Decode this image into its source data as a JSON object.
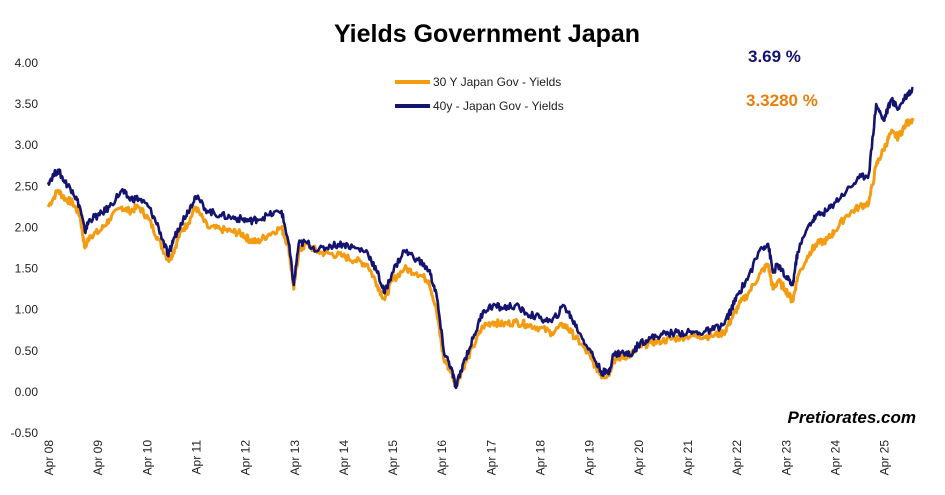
{
  "chart_data": {
    "type": "line",
    "title": "Yields Government Japan",
    "xlabel": "",
    "ylabel": "",
    "ylim": [
      -0.5,
      4.0
    ],
    "y_ticks": [
      "4.00",
      "3.50",
      "3.00",
      "2.50",
      "2.00",
      "1.50",
      "1.00",
      "0.50",
      "0.00",
      "-0.50"
    ],
    "x_ticks": [
      "Apr 08",
      "Apr 09",
      "Apr 10",
      "Apr 11",
      "Apr 12",
      "Apr 13",
      "Apr 14",
      "Apr 15",
      "Apr 16",
      "Apr 17",
      "Apr 18",
      "Apr 19",
      "Apr 20",
      "Apr 21",
      "Apr 22",
      "Apr 23",
      "Apr 24",
      "Apr 25"
    ],
    "x_range": [
      2008.25,
      2025.95
    ],
    "legend_position": "top-center",
    "series": [
      {
        "name": "30 Y Japan Gov - Yields",
        "color": "#F39C12",
        "last_value_label": "3.3280 %",
        "points": [
          [
            2008.25,
            2.25
          ],
          [
            2008.45,
            2.45
          ],
          [
            2008.6,
            2.35
          ],
          [
            2008.75,
            2.3
          ],
          [
            2008.9,
            2.15
          ],
          [
            2009.0,
            1.75
          ],
          [
            2009.1,
            1.9
          ],
          [
            2009.3,
            1.95
          ],
          [
            2009.5,
            2.1
          ],
          [
            2009.75,
            2.25
          ],
          [
            2009.9,
            2.2
          ],
          [
            2010.1,
            2.25
          ],
          [
            2010.3,
            2.1
          ],
          [
            2010.5,
            1.85
          ],
          [
            2010.7,
            1.6
          ],
          [
            2010.8,
            1.7
          ],
          [
            2010.95,
            1.95
          ],
          [
            2011.1,
            2.05
          ],
          [
            2011.25,
            2.25
          ],
          [
            2011.5,
            2.0
          ],
          [
            2011.75,
            1.98
          ],
          [
            2012.0,
            1.95
          ],
          [
            2012.2,
            1.92
          ],
          [
            2012.35,
            1.85
          ],
          [
            2012.5,
            1.82
          ],
          [
            2012.75,
            1.92
          ],
          [
            2013.0,
            2.0
          ],
          [
            2013.15,
            1.75
          ],
          [
            2013.25,
            1.25
          ],
          [
            2013.35,
            1.7
          ],
          [
            2013.5,
            1.8
          ],
          [
            2013.75,
            1.7
          ],
          [
            2014.0,
            1.68
          ],
          [
            2014.25,
            1.65
          ],
          [
            2014.5,
            1.6
          ],
          [
            2014.75,
            1.55
          ],
          [
            2014.95,
            1.3
          ],
          [
            2015.1,
            1.12
          ],
          [
            2015.25,
            1.35
          ],
          [
            2015.5,
            1.5
          ],
          [
            2015.75,
            1.45
          ],
          [
            2016.0,
            1.35
          ],
          [
            2016.15,
            1.0
          ],
          [
            2016.3,
            0.4
          ],
          [
            2016.45,
            0.25
          ],
          [
            2016.55,
            0.08
          ],
          [
            2016.7,
            0.3
          ],
          [
            2016.9,
            0.55
          ],
          [
            2017.1,
            0.8
          ],
          [
            2017.3,
            0.85
          ],
          [
            2017.5,
            0.82
          ],
          [
            2017.75,
            0.85
          ],
          [
            2018.0,
            0.82
          ],
          [
            2018.25,
            0.78
          ],
          [
            2018.5,
            0.72
          ],
          [
            2018.75,
            0.82
          ],
          [
            2018.9,
            0.72
          ],
          [
            2019.1,
            0.58
          ],
          [
            2019.3,
            0.4
          ],
          [
            2019.5,
            0.2
          ],
          [
            2019.65,
            0.2
          ],
          [
            2019.75,
            0.38
          ],
          [
            2019.9,
            0.42
          ],
          [
            2020.1,
            0.45
          ],
          [
            2020.3,
            0.55
          ],
          [
            2020.5,
            0.6
          ],
          [
            2020.75,
            0.62
          ],
          [
            2021.0,
            0.65
          ],
          [
            2021.25,
            0.68
          ],
          [
            2021.5,
            0.68
          ],
          [
            2021.75,
            0.68
          ],
          [
            2022.0,
            0.72
          ],
          [
            2022.15,
            0.88
          ],
          [
            2022.3,
            1.05
          ],
          [
            2022.5,
            1.2
          ],
          [
            2022.75,
            1.45
          ],
          [
            2022.9,
            1.55
          ],
          [
            2023.0,
            1.25
          ],
          [
            2023.1,
            1.35
          ],
          [
            2023.25,
            1.25
          ],
          [
            2023.4,
            1.1
          ],
          [
            2023.5,
            1.4
          ],
          [
            2023.75,
            1.7
          ],
          [
            2023.9,
            1.8
          ],
          [
            2024.1,
            1.85
          ],
          [
            2024.25,
            1.95
          ],
          [
            2024.5,
            2.15
          ],
          [
            2024.75,
            2.25
          ],
          [
            2024.95,
            2.3
          ],
          [
            2025.1,
            2.75
          ],
          [
            2025.25,
            2.95
          ],
          [
            2025.4,
            3.15
          ],
          [
            2025.55,
            3.1
          ],
          [
            2025.7,
            3.25
          ],
          [
            2025.85,
            3.33
          ]
        ]
      },
      {
        "name": "40y - Japan Gov - Yields",
        "color": "#141470",
        "last_value_label": "3.69 %",
        "points": [
          [
            2008.25,
            2.55
          ],
          [
            2008.45,
            2.7
          ],
          [
            2008.6,
            2.55
          ],
          [
            2008.75,
            2.45
          ],
          [
            2008.9,
            2.25
          ],
          [
            2009.0,
            1.95
          ],
          [
            2009.1,
            2.1
          ],
          [
            2009.3,
            2.15
          ],
          [
            2009.5,
            2.25
          ],
          [
            2009.75,
            2.45
          ],
          [
            2009.9,
            2.35
          ],
          [
            2010.1,
            2.35
          ],
          [
            2010.3,
            2.25
          ],
          [
            2010.5,
            2.0
          ],
          [
            2010.7,
            1.65
          ],
          [
            2010.8,
            1.85
          ],
          [
            2010.95,
            2.05
          ],
          [
            2011.1,
            2.2
          ],
          [
            2011.25,
            2.38
          ],
          [
            2011.5,
            2.2
          ],
          [
            2011.75,
            2.15
          ],
          [
            2012.0,
            2.12
          ],
          [
            2012.2,
            2.1
          ],
          [
            2012.35,
            2.08
          ],
          [
            2012.5,
            2.1
          ],
          [
            2012.75,
            2.15
          ],
          [
            2013.0,
            2.2
          ],
          [
            2013.15,
            1.8
          ],
          [
            2013.25,
            1.3
          ],
          [
            2013.35,
            1.8
          ],
          [
            2013.5,
            1.82
          ],
          [
            2013.75,
            1.72
          ],
          [
            2014.0,
            1.78
          ],
          [
            2014.25,
            1.8
          ],
          [
            2014.5,
            1.75
          ],
          [
            2014.75,
            1.7
          ],
          [
            2014.95,
            1.45
          ],
          [
            2015.1,
            1.2
          ],
          [
            2015.25,
            1.45
          ],
          [
            2015.5,
            1.72
          ],
          [
            2015.75,
            1.62
          ],
          [
            2016.0,
            1.48
          ],
          [
            2016.15,
            1.2
          ],
          [
            2016.3,
            0.5
          ],
          [
            2016.45,
            0.3
          ],
          [
            2016.55,
            0.05
          ],
          [
            2016.7,
            0.35
          ],
          [
            2016.9,
            0.65
          ],
          [
            2017.1,
            0.98
          ],
          [
            2017.3,
            1.05
          ],
          [
            2017.5,
            1.02
          ],
          [
            2017.75,
            1.05
          ],
          [
            2018.0,
            0.95
          ],
          [
            2018.25,
            0.9
          ],
          [
            2018.5,
            0.85
          ],
          [
            2018.75,
            1.05
          ],
          [
            2018.9,
            0.9
          ],
          [
            2019.1,
            0.68
          ],
          [
            2019.3,
            0.48
          ],
          [
            2019.5,
            0.25
          ],
          [
            2019.65,
            0.22
          ],
          [
            2019.75,
            0.45
          ],
          [
            2019.9,
            0.48
          ],
          [
            2020.1,
            0.45
          ],
          [
            2020.3,
            0.6
          ],
          [
            2020.5,
            0.65
          ],
          [
            2020.75,
            0.7
          ],
          [
            2021.0,
            0.72
          ],
          [
            2021.25,
            0.72
          ],
          [
            2021.5,
            0.72
          ],
          [
            2021.75,
            0.75
          ],
          [
            2022.0,
            0.82
          ],
          [
            2022.15,
            1.0
          ],
          [
            2022.3,
            1.2
          ],
          [
            2022.5,
            1.4
          ],
          [
            2022.75,
            1.75
          ],
          [
            2022.9,
            1.8
          ],
          [
            2023.0,
            1.45
          ],
          [
            2023.1,
            1.55
          ],
          [
            2023.25,
            1.4
          ],
          [
            2023.4,
            1.3
          ],
          [
            2023.5,
            1.7
          ],
          [
            2023.75,
            2.05
          ],
          [
            2023.9,
            2.15
          ],
          [
            2024.1,
            2.2
          ],
          [
            2024.25,
            2.3
          ],
          [
            2024.5,
            2.45
          ],
          [
            2024.75,
            2.6
          ],
          [
            2024.95,
            2.65
          ],
          [
            2025.1,
            3.5
          ],
          [
            2025.25,
            3.3
          ],
          [
            2025.4,
            3.55
          ],
          [
            2025.55,
            3.45
          ],
          [
            2025.7,
            3.6
          ],
          [
            2025.85,
            3.69
          ]
        ]
      }
    ]
  },
  "watermark": "Pretiorates.com"
}
